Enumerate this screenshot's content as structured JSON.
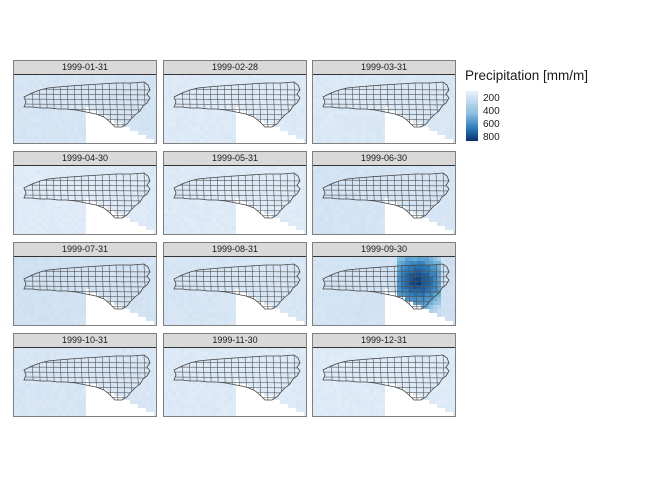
{
  "legend": {
    "title": "Precipitation [mm/m]",
    "ticks": [
      "200",
      "400",
      "600",
      "800"
    ],
    "tick_values": [
      200,
      400,
      600,
      800
    ],
    "range": [
      100,
      850
    ],
    "colors": {
      "low": "#e3eef9",
      "mid": "#6baed6",
      "high": "#08306b"
    }
  },
  "panels": [
    {
      "label": "1999-01-31",
      "base_precip": 230,
      "west_precip": 210,
      "storm": 0
    },
    {
      "label": "1999-02-28",
      "base_precip": 180,
      "west_precip": 170,
      "storm": 0
    },
    {
      "label": "1999-03-31",
      "base_precip": 200,
      "west_precip": 185,
      "storm": 0
    },
    {
      "label": "1999-04-30",
      "base_precip": 175,
      "west_precip": 160,
      "storm": 0
    },
    {
      "label": "1999-05-31",
      "base_precip": 165,
      "west_precip": 175,
      "storm": 0
    },
    {
      "label": "1999-06-30",
      "base_precip": 210,
      "west_precip": 230,
      "storm": 0
    },
    {
      "label": "1999-07-31",
      "base_precip": 230,
      "west_precip": 250,
      "storm": 0
    },
    {
      "label": "1999-08-31",
      "base_precip": 200,
      "west_precip": 210,
      "storm": 0
    },
    {
      "label": "1999-09-30",
      "base_precip": 260,
      "west_precip": 220,
      "storm": 1
    },
    {
      "label": "1999-10-31",
      "base_precip": 200,
      "west_precip": 210,
      "storm": 0
    },
    {
      "label": "1999-11-30",
      "base_precip": 175,
      "west_precip": 180,
      "storm": 0
    },
    {
      "label": "1999-12-31",
      "base_precip": 170,
      "west_precip": 165,
      "storm": 0
    }
  ]
}
